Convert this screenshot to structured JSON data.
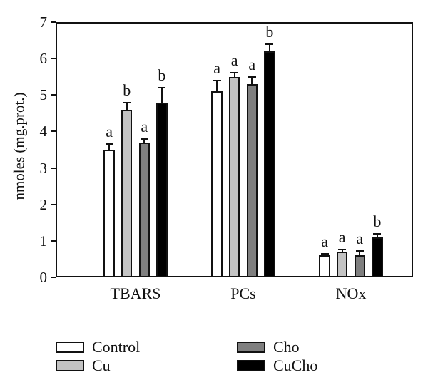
{
  "chart_data": {
    "type": "bar",
    "title": "",
    "xlabel": "",
    "ylabel": "nmoles (mg.prot.)",
    "ylim": [
      0,
      7
    ],
    "yticks": [
      0,
      1,
      2,
      3,
      4,
      5,
      6,
      7
    ],
    "grid": false,
    "error_bars": "upper-only with caps",
    "categories": [
      "TBARS",
      "PCs",
      "NOx"
    ],
    "series": [
      {
        "name": "Control",
        "color": "#ffffff",
        "values": [
          3.5,
          5.1,
          0.6
        ],
        "errors": [
          0.15,
          0.3,
          0.05
        ],
        "sig_letters": [
          "a",
          "a",
          "a"
        ]
      },
      {
        "name": "Cu",
        "color": "#c3c3c3",
        "values": [
          4.6,
          5.5,
          0.7
        ],
        "errors": [
          0.2,
          0.12,
          0.07
        ],
        "sig_letters": [
          "b",
          "a",
          "a"
        ]
      },
      {
        "name": "Cho",
        "color": "#7f7f7f",
        "values": [
          3.7,
          5.3,
          0.6
        ],
        "errors": [
          0.1,
          0.2,
          0.13
        ],
        "sig_letters": [
          "a",
          "a",
          "a"
        ]
      },
      {
        "name": "CuCho",
        "color": "#000000",
        "values": [
          4.8,
          6.2,
          1.1
        ],
        "errors": [
          0.4,
          0.2,
          0.1
        ],
        "sig_letters": [
          "b",
          "b",
          "b"
        ]
      }
    ],
    "legend": {
      "position": "bottom",
      "columns": [
        [
          "Control",
          "Cu"
        ],
        [
          "Cho",
          "CuCho"
        ]
      ]
    }
  }
}
